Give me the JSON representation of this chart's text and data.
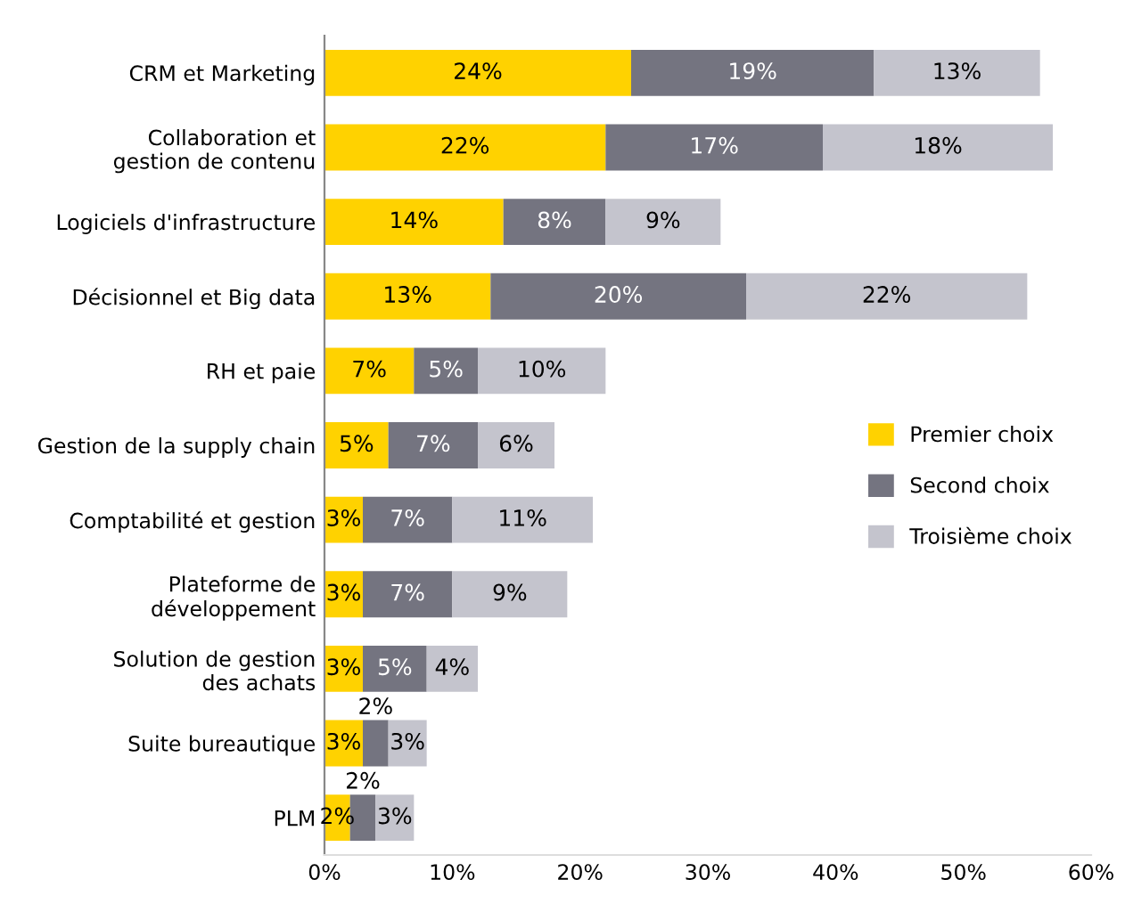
{
  "chart_data": {
    "type": "bar",
    "orientation": "horizontal",
    "stacked": true,
    "categories": [
      "CRM et Marketing",
      "Collaboration et\ngestion de contenu",
      "Logiciels d'infrastructure",
      "Décisionnel et Big data",
      "RH et paie",
      "Gestion de la supply chain",
      "Comptabilité et gestion",
      "Plateforme de\ndéveloppement",
      "Solution de gestion\ndes achats",
      "Suite bureautique",
      "PLM"
    ],
    "series": [
      {
        "name": "Premier choix",
        "color": "#ffd200",
        "values": [
          24,
          22,
          14,
          13,
          7,
          5,
          3,
          3,
          3,
          3,
          2
        ],
        "value_labels": [
          "24%",
          "22%",
          "14%",
          "13%",
          "7%",
          "5%",
          "3%",
          "3%",
          "3%",
          "3%",
          "2%"
        ]
      },
      {
        "name": "Second choix",
        "color": "#747480",
        "values": [
          19,
          17,
          8,
          20,
          5,
          7,
          7,
          7,
          5,
          2,
          2
        ],
        "value_labels": [
          "19%",
          "17%",
          "8%",
          "20%",
          "5%",
          "7%",
          "7%",
          "7%",
          "5%",
          "2%",
          "2%"
        ]
      },
      {
        "name": "Troisième choix",
        "color": "#c4c4cd",
        "values": [
          13,
          18,
          9,
          22,
          10,
          6,
          11,
          9,
          4,
          3,
          3
        ],
        "value_labels": [
          "13%",
          "18%",
          "9%",
          "22%",
          "10%",
          "6%",
          "11%",
          "9%",
          "4%",
          "3%",
          "3%"
        ]
      }
    ],
    "xlim": [
      0,
      60
    ],
    "xticks": [
      {
        "value": 0,
        "label": "0%"
      },
      {
        "value": 10,
        "label": "10%"
      },
      {
        "value": 20,
        "label": "20%"
      },
      {
        "value": 30,
        "label": "30%"
      },
      {
        "value": 40,
        "label": "40%"
      },
      {
        "value": 50,
        "label": "50%"
      },
      {
        "value": 60,
        "label": "60%"
      }
    ],
    "legend": "right",
    "grid": false
  }
}
